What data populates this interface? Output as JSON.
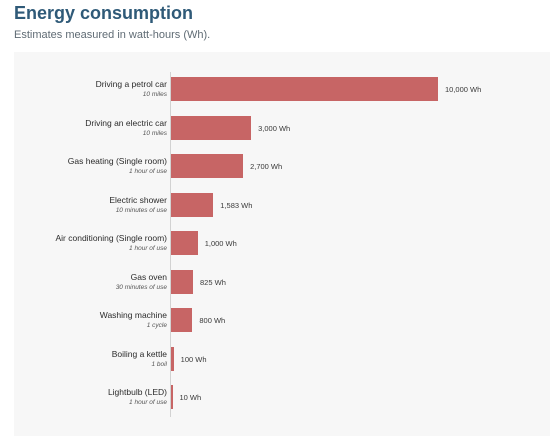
{
  "header": {
    "title": "Energy consumption",
    "subtitle": "Estimates measured in watt-hours (Wh)."
  },
  "chart_data": {
    "type": "bar",
    "orientation": "horizontal",
    "title": "Energy consumption",
    "subtitle": "Estimates measured in watt-hours (Wh).",
    "categories": [
      "Driving a petrol car",
      "Driving  an electric car",
      "Gas heating (Single room)",
      "Electric shower",
      "Air conditioning (Single room)",
      "Gas oven",
      "Washing machine",
      "Boiling a kettle",
      "Lightbulb (LED)"
    ],
    "category_notes": [
      "10 miles",
      "10 miles",
      "1 hour of use",
      "10 minutes of use",
      "1 hour of use",
      "30 minutes of use",
      "1 cycle",
      "1 boil",
      "1 hour of use"
    ],
    "values": [
      10000,
      3000,
      2700,
      1583,
      1000,
      825,
      800,
      100,
      10
    ],
    "value_labels": [
      "10,000 Wh",
      "3,000 Wh",
      "2,700 Wh",
      "1,583 Wh",
      "1,000 Wh",
      "825 Wh",
      "800 Wh",
      "100 Wh",
      "10 Wh"
    ],
    "xlim": [
      0,
      10000
    ],
    "grid": false,
    "colors": {
      "bar": "#c76565",
      "title": "#2f5a78"
    }
  }
}
